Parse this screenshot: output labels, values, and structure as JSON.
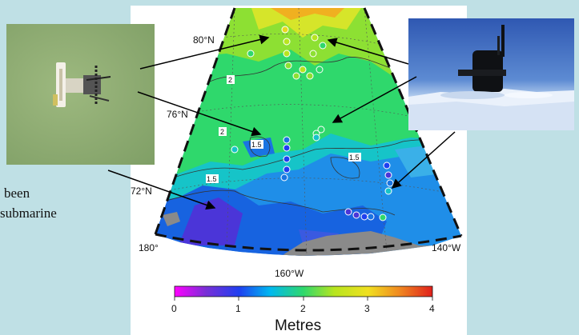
{
  "slide": {
    "caption_lines": [
      "been",
      "submarine"
    ]
  },
  "map": {
    "latitude_labels": [
      "80°N",
      "76°N",
      "72°N"
    ],
    "longitude_labels": [
      "180°",
      "160°W",
      "140°W"
    ],
    "contour_labels": [
      "2",
      "2",
      "1.5",
      "1.5",
      "1.5"
    ],
    "colorbar": {
      "ticks": [
        "0",
        "1",
        "2",
        "3",
        "4"
      ],
      "unit_label": "Metres",
      "range": [
        0,
        4
      ],
      "colors": [
        "#ff00ff",
        "#7a2fd6",
        "#1f3ff0",
        "#00b8f0",
        "#2fd86c",
        "#b8e51f",
        "#f0e020",
        "#f08a20",
        "#e0201c"
      ]
    }
  },
  "photos": {
    "left": "aerial ice photo",
    "right": "submarine surfaced in ice photo"
  }
}
